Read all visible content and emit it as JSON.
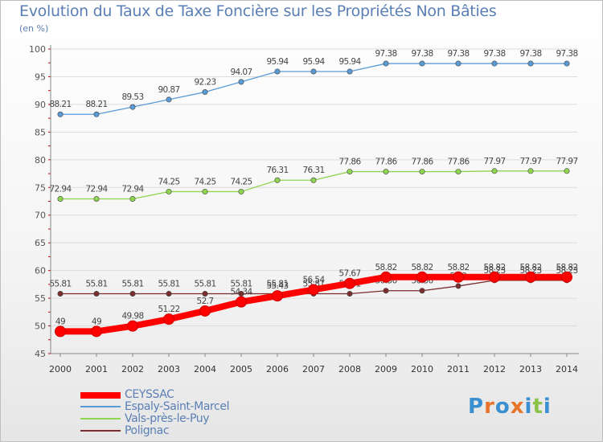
{
  "chart_data": {
    "type": "line",
    "title": "Evolution du Taux de Taxe Foncière sur les Propriétés Non Bâties",
    "ylabel": "(en %)",
    "xlabel": "",
    "ylim": [
      45,
      100
    ],
    "yticks": [
      45,
      50,
      55,
      60,
      65,
      70,
      75,
      80,
      85,
      90,
      95,
      100
    ],
    "categories": [
      "2000",
      "2001",
      "2002",
      "2003",
      "2004",
      "2005",
      "2006",
      "2007",
      "2008",
      "2009",
      "2010",
      "2011",
      "2012",
      "2013",
      "2014"
    ],
    "series": [
      {
        "name": "Espaly-Saint-Marcel",
        "color": "#5b9bd5",
        "values": [
          88.21,
          88.21,
          89.53,
          90.87,
          92.23,
          94.07,
          95.94,
          95.94,
          95.94,
          97.38,
          97.38,
          97.38,
          97.38,
          97.38,
          97.38
        ],
        "labels": [
          "88.21",
          "88.21",
          "89.53",
          "90.87",
          "92.23",
          "94.07",
          "95.94",
          "95.94",
          "95.94",
          "97.38",
          "97.38",
          "97.38",
          "97.38",
          "97.38",
          "97.38"
        ]
      },
      {
        "name": "Vals-près-le-Puy",
        "color": "#8ed650",
        "values": [
          72.94,
          72.94,
          72.94,
          74.25,
          74.25,
          74.25,
          76.31,
          76.31,
          77.86,
          77.86,
          77.86,
          77.86,
          77.97,
          77.97,
          77.97
        ],
        "labels": [
          "72.94",
          "72.94",
          "72.94",
          "74.25",
          "74.25",
          "74.25",
          "76.31",
          "76.31",
          "77.86",
          "77.86",
          "77.86",
          "77.86",
          "77.97",
          "77.97",
          "77.97"
        ]
      },
      {
        "name": "Polignac",
        "color": "#7b2c2c",
        "values": [
          55.81,
          55.81,
          55.81,
          55.81,
          55.81,
          55.81,
          55.81,
          55.81,
          55.81,
          56.36,
          56.36,
          57.2,
          58.23,
          58.23,
          58.23
        ],
        "labels": [
          "55.81",
          "55.81",
          "55.81",
          "55.81",
          "55.81",
          "55.81",
          "55.81",
          "55.81",
          "55.81",
          "56.36",
          "56.36",
          "57.2",
          "58.23",
          "58.23",
          "58.23"
        ]
      },
      {
        "name": "CEYSSAC",
        "color": "#ff0000",
        "values": [
          49,
          49,
          49.98,
          51.22,
          52.7,
          54.34,
          55.43,
          56.54,
          57.67,
          58.82,
          58.82,
          58.82,
          58.82,
          58.82,
          58.82
        ],
        "labels": [
          "49",
          "49",
          "49.98",
          "51.22",
          "52.7",
          "54.34",
          "55.43",
          "56.54",
          "57.67",
          "58.82",
          "58.82",
          "58.82",
          "58.82",
          "58.82",
          "58.82"
        ]
      }
    ],
    "legend": [
      "CEYSSAC",
      "Espaly-Saint-Marcel",
      "Vals-près-le-Puy",
      "Polignac"
    ],
    "legend_position": "bottom-left"
  },
  "logo": {
    "text": "Proxiti",
    "colors": [
      "#3a8fd0",
      "#e8732a",
      "#3a8fd0",
      "#e8732a",
      "#3a8fd0",
      "#8bc34a",
      "#3a8fd0"
    ]
  }
}
